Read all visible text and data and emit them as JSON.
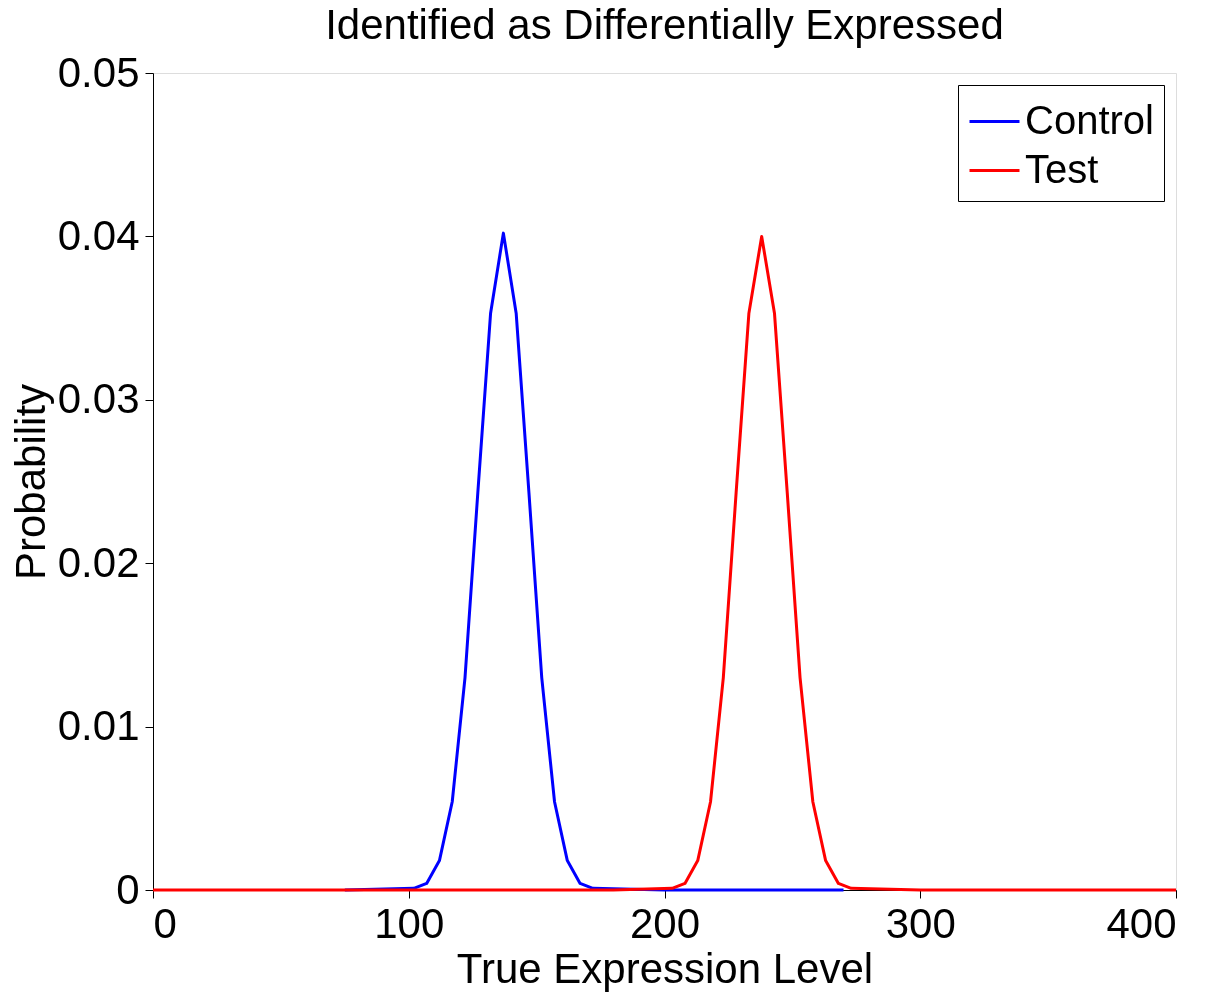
{
  "chart_data": {
    "type": "line",
    "title": "Identified as Differentially Expressed",
    "xlabel": "True Expression Level",
    "ylabel": "Probability",
    "xlim": [
      0,
      400
    ],
    "xticks": [
      0,
      100,
      200,
      300,
      400
    ],
    "ylim": [
      0,
      0.05
    ],
    "yticks": [
      0,
      0.01,
      0.02,
      0.03,
      0.04,
      0.05
    ],
    "grid": false,
    "legend": "top right",
    "marker": "none",
    "line_style": "solid",
    "series": [
      {
        "name": "Control",
        "color": "#0000ff",
        "x": [
          75,
          102,
          107,
          112,
          117,
          122,
          127,
          132,
          137,
          142,
          147,
          152,
          157,
          162,
          167,
          172,
          200,
          270
        ],
        "values": [
          0,
          0.0001,
          0.0004,
          0.0018,
          0.0054,
          0.013,
          0.0243,
          0.0353,
          0.0402,
          0.0353,
          0.0243,
          0.013,
          0.0054,
          0.0018,
          0.0004,
          0.0001,
          0,
          0
        ]
      },
      {
        "name": "Test",
        "color": "#ff0000",
        "x": [
          0,
          180,
          203,
          208,
          213,
          218,
          223,
          228,
          233,
          238,
          243,
          248,
          253,
          258,
          263,
          268,
          273,
          300,
          400
        ],
        "values": [
          0,
          0,
          0.0001,
          0.0004,
          0.0018,
          0.0054,
          0.013,
          0.0243,
          0.0353,
          0.04,
          0.0353,
          0.0243,
          0.013,
          0.0054,
          0.0018,
          0.0004,
          0.0001,
          0,
          0
        ]
      }
    ]
  }
}
